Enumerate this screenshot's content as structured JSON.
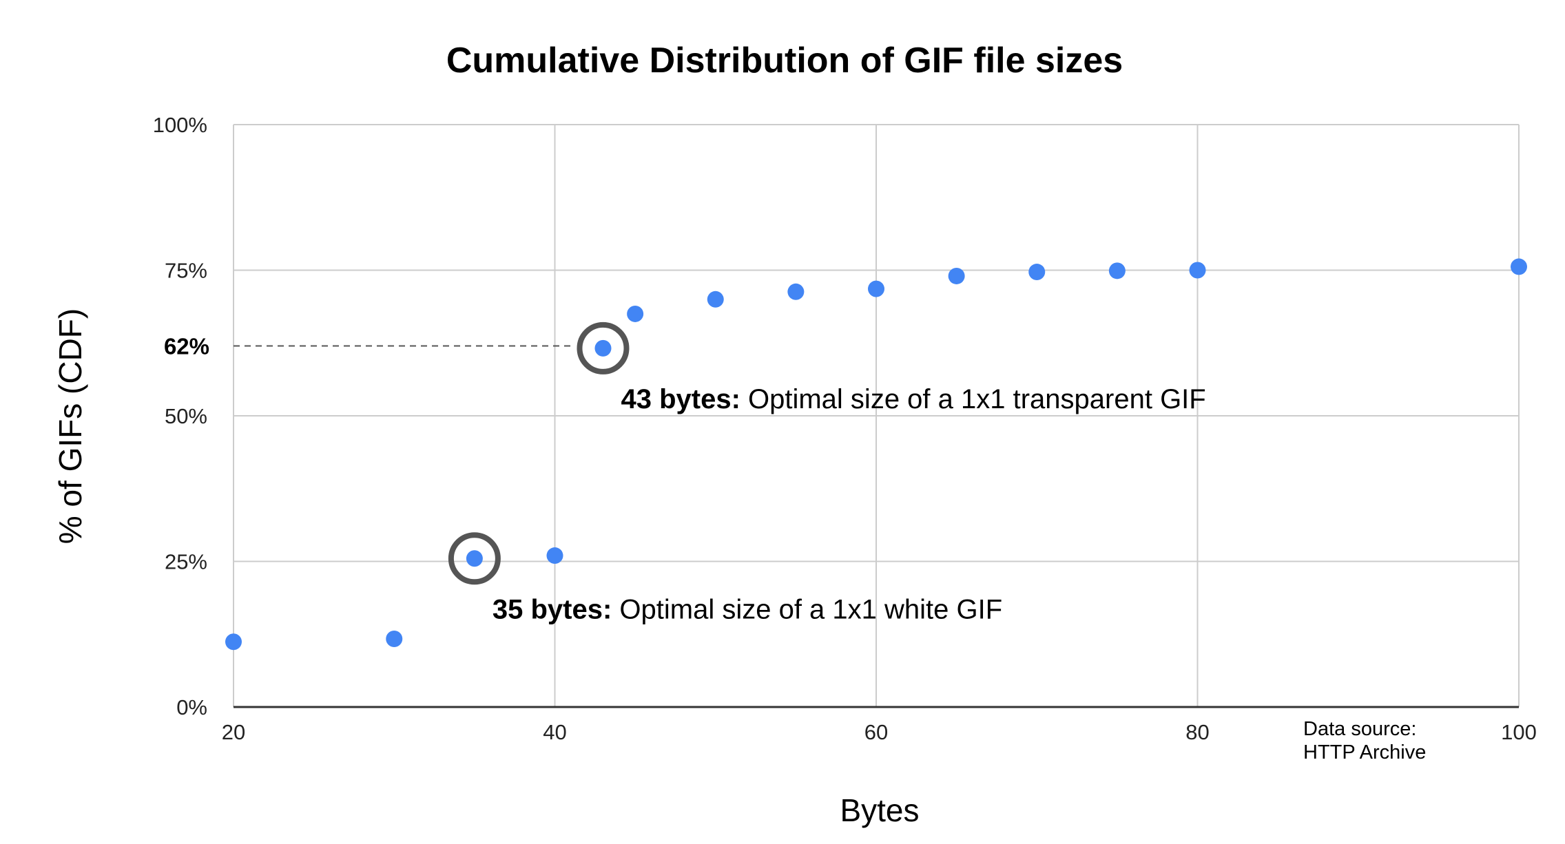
{
  "chart_data": {
    "type": "scatter",
    "title": "Cumulative Distribution of GIF file sizes",
    "xlabel": "Bytes",
    "ylabel": "% of GIFs (CDF)",
    "xlim": [
      20,
      100
    ],
    "ylim": [
      0,
      100
    ],
    "x_ticks": [
      "20",
      "40",
      "60",
      "80",
      "100"
    ],
    "y_ticks": [
      "0%",
      "25%",
      "50%",
      "75%",
      "100%"
    ],
    "grid": true,
    "point_color": "#4285f4",
    "points": [
      {
        "x": 20,
        "y": 11.2
      },
      {
        "x": 30,
        "y": 11.7
      },
      {
        "x": 35,
        "y": 25.5
      },
      {
        "x": 40,
        "y": 26
      },
      {
        "x": 43,
        "y": 61.6
      },
      {
        "x": 45,
        "y": 67.5
      },
      {
        "x": 50,
        "y": 70
      },
      {
        "x": 55,
        "y": 71.3
      },
      {
        "x": 60,
        "y": 71.8
      },
      {
        "x": 65,
        "y": 74
      },
      {
        "x": 70,
        "y": 74.7
      },
      {
        "x": 75,
        "y": 74.9
      },
      {
        "x": 80,
        "y": 75
      },
      {
        "x": 100,
        "y": 75.6
      }
    ],
    "annotations": [
      {
        "x": 43,
        "y": 61.6,
        "bold": "43 bytes:",
        "text": " Optimal size of a 1x1 transparent GIF"
      },
      {
        "x": 35,
        "y": 25.5,
        "bold": "35 bytes:",
        "text": " Optimal size of a 1x1 white GIF"
      }
    ],
    "reference_line": {
      "y": 62,
      "label": "62%"
    },
    "source": [
      "Data source:",
      "HTTP Archive"
    ]
  }
}
